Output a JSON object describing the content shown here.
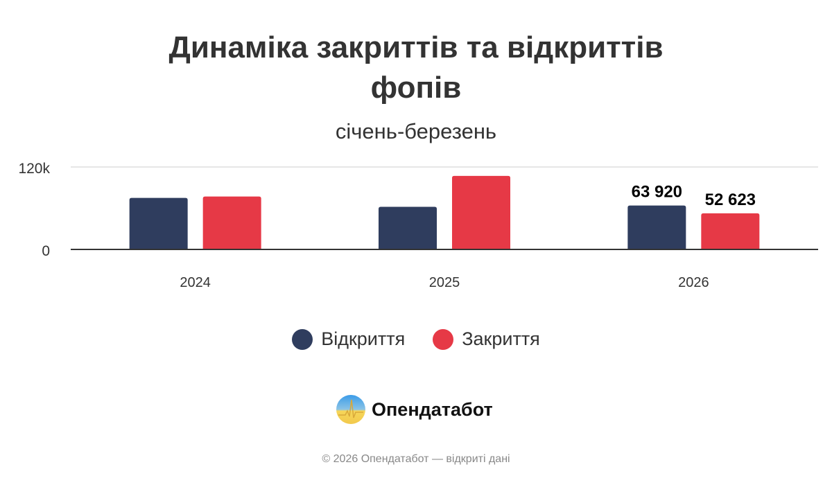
{
  "chart_data": {
    "type": "bar",
    "title": "Динаміка закриттів та відкриттів фопів",
    "subtitle": "січень-березень",
    "categories": [
      "2024",
      "2025",
      "2026"
    ],
    "series": [
      {
        "name": "Відкриття",
        "color": "#2f3d5e",
        "values": [
          75000,
          62000,
          63920
        ]
      },
      {
        "name": "Закриття",
        "color": "#e63946",
        "values": [
          77000,
          107000,
          52623
        ]
      }
    ],
    "data_labels": [
      {
        "category": "2026",
        "series": "Відкриття",
        "text": "63 920"
      },
      {
        "category": "2026",
        "series": "Закриття",
        "text": "52 623"
      }
    ],
    "yticks": [
      {
        "value": 0,
        "label": "0"
      },
      {
        "value": 120000,
        "label": "120k"
      }
    ],
    "ylim": [
      0,
      120000
    ],
    "grid": true,
    "legend": "bottom"
  },
  "branding": {
    "logo_text": "Опендатабот",
    "footer": "© 2026 Опендатабот — відкриті дані"
  }
}
